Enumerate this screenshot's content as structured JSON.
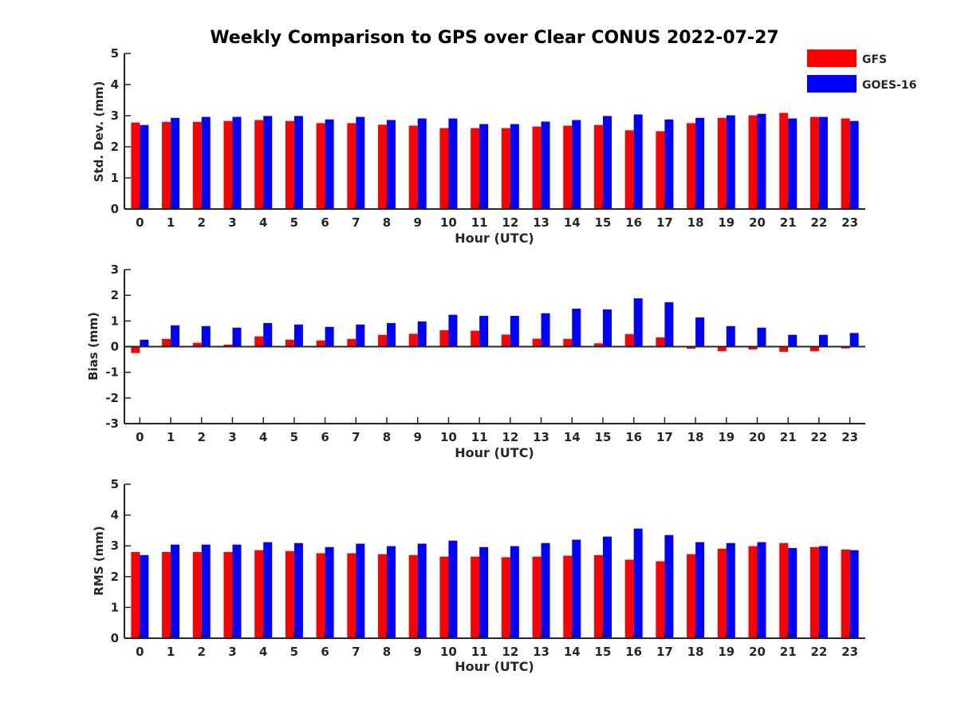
{
  "title": "Weekly Comparison to GPS over Clear CONUS 2022-07-27",
  "legend": {
    "position": "top-right",
    "items": [
      {
        "label": "GFS",
        "color": "#ff0000"
      },
      {
        "label": "GOES-16",
        "color": "#0000ff"
      }
    ]
  },
  "chart_data": [
    {
      "type": "bar",
      "categories": [
        "0",
        "1",
        "2",
        "3",
        "4",
        "5",
        "6",
        "7",
        "8",
        "9",
        "10",
        "11",
        "12",
        "13",
        "14",
        "15",
        "16",
        "17",
        "18",
        "19",
        "20",
        "21",
        "22",
        "23"
      ],
      "xlabel": "Hour (UTC)",
      "ylabel": "Std. Dev. (mm)",
      "ylim": [
        0,
        5
      ],
      "yticks": [
        "0",
        "1",
        "2",
        "3",
        "4",
        "5"
      ],
      "series": [
        {
          "name": "GFS",
          "color": "#ff0000",
          "values": [
            2.78,
            2.8,
            2.8,
            2.83,
            2.86,
            2.83,
            2.76,
            2.76,
            2.71,
            2.68,
            2.6,
            2.6,
            2.6,
            2.65,
            2.68,
            2.7,
            2.53,
            2.5,
            2.76,
            2.93,
            3.01,
            3.09,
            2.96,
            2.91
          ]
        },
        {
          "name": "GOES-16",
          "color": "#0000ff",
          "values": [
            2.7,
            2.93,
            2.96,
            2.96,
            2.99,
            2.99,
            2.88,
            2.96,
            2.86,
            2.91,
            2.91,
            2.73,
            2.73,
            2.81,
            2.86,
            2.99,
            3.04,
            2.88,
            2.93,
            3.01,
            3.06,
            2.91,
            2.96,
            2.83
          ]
        }
      ]
    },
    {
      "type": "bar",
      "categories": [
        "0",
        "1",
        "2",
        "3",
        "4",
        "5",
        "6",
        "7",
        "8",
        "9",
        "10",
        "11",
        "12",
        "13",
        "14",
        "15",
        "16",
        "17",
        "18",
        "19",
        "20",
        "21",
        "22",
        "23"
      ],
      "xlabel": "Hour (UTC)",
      "ylabel": "Bias (mm)",
      "ylim": [
        -3,
        3
      ],
      "yticks": [
        "-3",
        "-2",
        "-1",
        "0",
        "1",
        "2",
        "3"
      ],
      "series": [
        {
          "name": "GFS",
          "color": "#ff0000",
          "values": [
            -0.25,
            0.3,
            0.15,
            0.08,
            0.4,
            0.27,
            0.24,
            0.3,
            0.46,
            0.5,
            0.64,
            0.62,
            0.47,
            0.31,
            0.3,
            0.13,
            0.49,
            0.36,
            -0.08,
            -0.18,
            -0.11,
            -0.2,
            -0.18,
            -0.07
          ]
        },
        {
          "name": "GOES-16",
          "color": "#0000ff",
          "values": [
            0.27,
            0.83,
            0.8,
            0.74,
            0.92,
            0.86,
            0.77,
            0.86,
            0.92,
            0.98,
            1.24,
            1.2,
            1.2,
            1.3,
            1.48,
            1.45,
            1.88,
            1.73,
            1.14,
            0.8,
            0.74,
            0.46,
            0.46,
            0.53
          ]
        }
      ]
    },
    {
      "type": "bar",
      "categories": [
        "0",
        "1",
        "2",
        "3",
        "4",
        "5",
        "6",
        "7",
        "8",
        "9",
        "10",
        "11",
        "12",
        "13",
        "14",
        "15",
        "16",
        "17",
        "18",
        "19",
        "20",
        "21",
        "22",
        "23"
      ],
      "xlabel": "Hour (UTC)",
      "ylabel": "RMS (mm)",
      "ylim": [
        0,
        5
      ],
      "yticks": [
        "0",
        "1",
        "2",
        "3",
        "4",
        "5"
      ],
      "series": [
        {
          "name": "GFS",
          "color": "#ff0000",
          "values": [
            2.8,
            2.8,
            2.8,
            2.8,
            2.86,
            2.83,
            2.76,
            2.76,
            2.73,
            2.7,
            2.65,
            2.65,
            2.63,
            2.65,
            2.68,
            2.7,
            2.55,
            2.5,
            2.73,
            2.91,
            2.99,
            3.09,
            2.96,
            2.88
          ]
        },
        {
          "name": "GOES-16",
          "color": "#0000ff",
          "values": [
            2.7,
            3.04,
            3.04,
            3.04,
            3.12,
            3.09,
            2.96,
            3.07,
            2.99,
            3.07,
            3.17,
            2.96,
            2.99,
            3.09,
            3.2,
            3.3,
            3.56,
            3.35,
            3.12,
            3.09,
            3.12,
            2.93,
            2.99,
            2.86
          ]
        }
      ]
    }
  ]
}
